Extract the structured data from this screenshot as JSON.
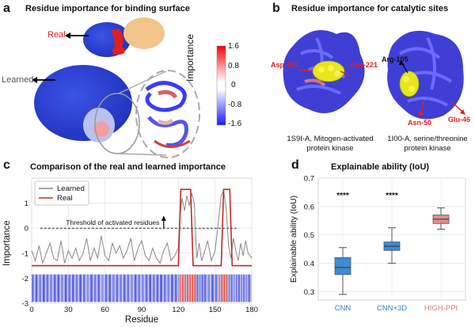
{
  "panel_a": {
    "letter": "a",
    "title": "Residue importance for binding surface",
    "real_label": "Real",
    "learned_label": "Learned",
    "colorbar_title": "Importance",
    "colorbar_ticks": [
      "1.6",
      "0.8",
      "0",
      "-0.8",
      "-1.6"
    ]
  },
  "panel_b": {
    "letter": "b",
    "title": "Residue importance for catalytic sites",
    "left_labels": [
      "Asp-194",
      "Asp-221"
    ],
    "right_labels": [
      "Arg-105",
      "Asn-50",
      "Glu-46"
    ],
    "left_caption_1": "1S9I-A, Mitogen-activated",
    "left_caption_2": "protein kinase",
    "right_caption_1": "1I00-A, serine/threonine",
    "right_caption_2": "protein kinase"
  },
  "panel_c": {
    "letter": "c",
    "title": "Comparison of the real and learned importance",
    "threshold_label": "Threshold of activated residues"
  },
  "panel_d": {
    "letter": "d",
    "title": "Explainable ability (IoU)"
  },
  "chart_data": [
    {
      "type": "line",
      "xlabel": "Residue",
      "ylabel": "Importance",
      "xlim": [
        0,
        180
      ],
      "ylim": [
        -3,
        2
      ],
      "x_ticks": [
        "0",
        "30",
        "60",
        "90",
        "120",
        "150",
        "180"
      ],
      "y_ticks": [
        "-3",
        "-2",
        "-1",
        "0",
        "1"
      ],
      "threshold": 0,
      "legend_position": "top-left",
      "grid": true,
      "series": [
        {
          "name": "Learned",
          "color": "#888888",
          "x": [
            0,
            3,
            6,
            9,
            12,
            15,
            18,
            21,
            24,
            27,
            30,
            33,
            36,
            39,
            42,
            45,
            48,
            51,
            54,
            57,
            60,
            63,
            66,
            69,
            72,
            75,
            78,
            81,
            84,
            87,
            90,
            93,
            96,
            99,
            102,
            105,
            108,
            111,
            114,
            117,
            120,
            121,
            123,
            125,
            127,
            129,
            131,
            133,
            135,
            137,
            139,
            141,
            144,
            147,
            150,
            153,
            155,
            157,
            159,
            161,
            163,
            165,
            167,
            169,
            171,
            173,
            175,
            177,
            180
          ],
          "y": [
            -0.9,
            -1.3,
            -0.7,
            -1.4,
            -1.0,
            -0.6,
            -1.2,
            -1.3,
            -0.5,
            -1.4,
            -0.9,
            -1.2,
            -0.8,
            -1.3,
            -1.0,
            -0.4,
            -1.3,
            -0.8,
            -1.2,
            -0.3,
            -1.1,
            -1.3,
            -0.6,
            -1.0,
            -0.7,
            -1.2,
            -0.9,
            -0.4,
            -1.3,
            -0.8,
            -0.5,
            -1.1,
            -1.3,
            -0.8,
            -1.2,
            -1.4,
            -0.9,
            -0.6,
            -1.3,
            -1.1,
            -0.8,
            0.3,
            1.2,
            0.7,
            1.3,
            0.9,
            1.4,
            1.0,
            -1.2,
            -0.6,
            -1.3,
            -1.0,
            -0.5,
            -1.3,
            -0.9,
            0.4,
            1.3,
            1.5,
            0.8,
            -0.7,
            -1.2,
            -0.4,
            -0.9,
            -1.3,
            -0.6,
            -1.1,
            -0.5,
            -1.0,
            -1.2
          ]
        },
        {
          "name": "Real",
          "color": "#c62828",
          "x": [
            0,
            120,
            122,
            130,
            132,
            155,
            157,
            162,
            164,
            180
          ],
          "y": [
            -1.5,
            -1.5,
            1.55,
            1.55,
            -1.5,
            -1.5,
            1.55,
            1.55,
            -1.5,
            -1.5
          ]
        }
      ]
    },
    {
      "type": "box",
      "ylabel": "Explainable ability (IoU)",
      "ylim": [
        0.27,
        0.7
      ],
      "y_ticks": [
        "0.3",
        "0.4",
        "0.5",
        "0.6",
        "0.7"
      ],
      "categories": [
        "CNN",
        "CNN+3D",
        "HIGH-PPI"
      ],
      "colors": [
        "#3d8ad6",
        "#3d8ad6",
        "#e38b8b"
      ],
      "label_colors": [
        "#2f7fd0",
        "#2f7fd0",
        "#d97b7b"
      ],
      "boxes": [
        {
          "min": 0.29,
          "q1": 0.36,
          "median": 0.385,
          "q3": 0.42,
          "max": 0.455
        },
        {
          "min": 0.4,
          "q1": 0.445,
          "median": 0.46,
          "q3": 0.475,
          "max": 0.525
        },
        {
          "min": 0.52,
          "q1": 0.54,
          "median": 0.555,
          "q3": 0.57,
          "max": 0.595
        }
      ],
      "annotations": [
        "****",
        "****",
        ""
      ]
    }
  ]
}
